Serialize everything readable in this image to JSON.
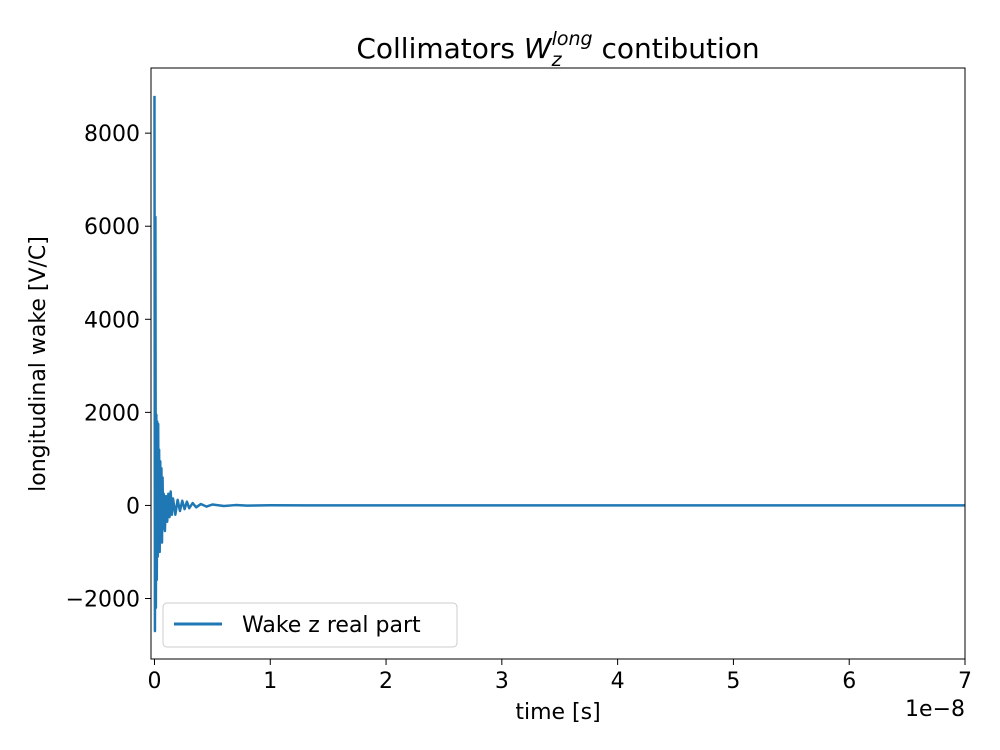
{
  "chart_data": {
    "type": "line",
    "title": {
      "prefix": "Collimators ",
      "symbol": "W",
      "subscript": "z",
      "superscript": "long",
      "suffix": " contibution"
    },
    "xlabel": "time [s]",
    "ylabel": "longitudinal wake [V/C]",
    "x_offset_text": "1e−8",
    "xlim": [
      -0.03,
      7.0
    ],
    "ylim": [
      -3300,
      9400
    ],
    "x_scale_multiplier": 1e-08,
    "xticks": [
      0,
      1,
      2,
      3,
      4,
      5,
      6,
      7
    ],
    "xtick_labels": [
      "0",
      "1",
      "2",
      "3",
      "4",
      "5",
      "6",
      "7"
    ],
    "yticks": [
      -2000,
      0,
      2000,
      4000,
      6000,
      8000
    ],
    "ytick_labels": [
      "−2000",
      "0",
      "2000",
      "4000",
      "6000",
      "8000"
    ],
    "grid": false,
    "legend": {
      "position": "lower-left"
    },
    "colors": {
      "series": "#1f77b4",
      "axes": "#000000",
      "background": "#ffffff"
    },
    "series": [
      {
        "name": "Wake z real part",
        "x": [
          0.0,
          0.004,
          0.008,
          0.012,
          0.016,
          0.02,
          0.024,
          0.028,
          0.032,
          0.036,
          0.04,
          0.045,
          0.05,
          0.055,
          0.06,
          0.065,
          0.07,
          0.075,
          0.08,
          0.09,
          0.1,
          0.11,
          0.12,
          0.13,
          0.14,
          0.15,
          0.16,
          0.18,
          0.2,
          0.22,
          0.24,
          0.26,
          0.28,
          0.3,
          0.33,
          0.36,
          0.4,
          0.45,
          0.5,
          0.6,
          0.7,
          0.8,
          1.0,
          1.3,
          1.6,
          2.0,
          3.0,
          4.0,
          5.0,
          6.0,
          7.0
        ],
        "y": [
          8800,
          -2700,
          6200,
          -2200,
          1950,
          -1600,
          1800,
          -1100,
          1750,
          -900,
          1200,
          -1000,
          950,
          -750,
          800,
          -800,
          600,
          -500,
          250,
          -550,
          200,
          -350,
          250,
          -250,
          300,
          -200,
          150,
          -200,
          120,
          -120,
          100,
          -80,
          80,
          -60,
          50,
          -40,
          30,
          -25,
          20,
          -12,
          8,
          -5,
          4,
          2,
          1,
          0,
          0,
          0,
          0,
          0,
          0
        ]
      }
    ]
  }
}
